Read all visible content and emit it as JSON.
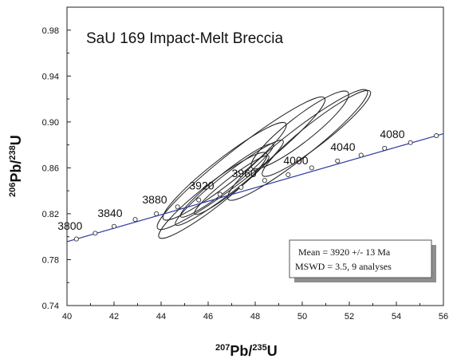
{
  "chart_data": {
    "type": "scatter",
    "title": "SaU 169 Impact-Melt Breccia",
    "xlabel": {
      "pre_sup": "207",
      "main": "Pb/",
      "post_sup": "235",
      "end": "U"
    },
    "ylabel": {
      "pre_sup": "206",
      "main": "Pb/",
      "post_sup": "238",
      "end": "U"
    },
    "xlim": [
      40,
      56
    ],
    "ylim": [
      0.74,
      1.0
    ],
    "x_ticks": [
      "40",
      "42",
      "44",
      "46",
      "48",
      "50",
      "52",
      "54",
      "56"
    ],
    "y_ticks": [
      "0.74",
      "0.78",
      "0.82",
      "0.86",
      "0.90",
      "0.94",
      "0.98"
    ],
    "concordia": {
      "points": [
        [
          40.4,
          0.798
        ],
        [
          41.2,
          0.803
        ],
        [
          42.0,
          0.809
        ],
        [
          42.9,
          0.815
        ],
        [
          43.8,
          0.82
        ],
        [
          44.7,
          0.826
        ],
        [
          45.6,
          0.832
        ],
        [
          46.5,
          0.837
        ],
        [
          47.4,
          0.843
        ],
        [
          48.4,
          0.849
        ],
        [
          49.4,
          0.854
        ],
        [
          50.4,
          0.86
        ],
        [
          51.5,
          0.866
        ],
        [
          52.5,
          0.871
        ],
        [
          53.5,
          0.877
        ],
        [
          54.6,
          0.882
        ],
        [
          55.7,
          0.888
        ]
      ],
      "age_labels": [
        {
          "text": "3800",
          "x": 39.6,
          "y": 0.806
        },
        {
          "text": "3840",
          "x": 41.3,
          "y": 0.817
        },
        {
          "text": "3880",
          "x": 43.2,
          "y": 0.829
        },
        {
          "text": "3920",
          "x": 45.2,
          "y": 0.841
        },
        {
          "text": "3960",
          "x": 47.0,
          "y": 0.852
        },
        {
          "text": "4000",
          "x": 49.2,
          "y": 0.863
        },
        {
          "text": "4040",
          "x": 51.2,
          "y": 0.875
        },
        {
          "text": "4080",
          "x": 53.3,
          "y": 0.886
        }
      ]
    },
    "ellipses": [
      {
        "cx": 49.8,
        "cy": 0.88,
        "rx": 3.75,
        "ry": 0.012,
        "angle": 38
      },
      {
        "cx": 50.6,
        "cy": 0.89,
        "rx": 2.9,
        "ry": 0.01,
        "angle": 38
      },
      {
        "cx": 49.9,
        "cy": 0.893,
        "rx": 2.6,
        "ry": 0.011,
        "angle": 38
      },
      {
        "cx": 47.4,
        "cy": 0.864,
        "rx": 4.5,
        "ry": 0.013,
        "angle": 38
      },
      {
        "cx": 46.7,
        "cy": 0.857,
        "rx": 3.3,
        "ry": 0.011,
        "angle": 38
      },
      {
        "cx": 46.9,
        "cy": 0.847,
        "rx": 2.9,
        "ry": 0.008,
        "angle": 38
      },
      {
        "cx": 46.8,
        "cy": 0.849,
        "rx": 2.5,
        "ry": 0.007,
        "angle": 38
      },
      {
        "cx": 46.2,
        "cy": 0.836,
        "rx": 2.9,
        "ry": 0.01,
        "angle": 38
      },
      {
        "cx": 47.0,
        "cy": 0.845,
        "rx": 2.0,
        "ry": 0.006,
        "angle": 38
      }
    ],
    "result_box": {
      "line1": "Mean = 3920 +/- 13  Ma",
      "line2": "MSWD = 3.5,  9 analyses"
    },
    "colors": {
      "concordia": "#2b3aa0",
      "ellipse": "#222222",
      "axis": "#222222"
    }
  }
}
